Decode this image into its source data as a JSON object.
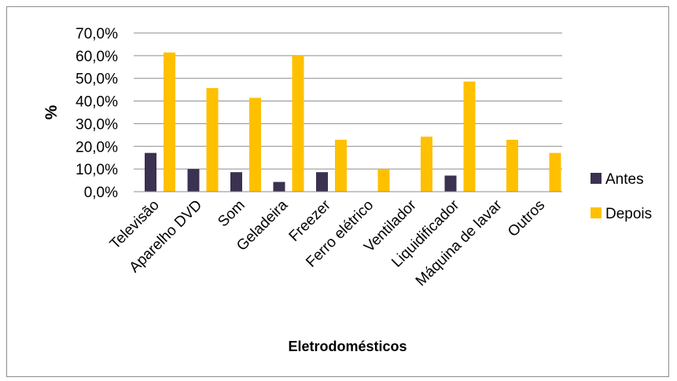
{
  "chart_data": {
    "type": "bar",
    "title": "",
    "xlabel": "Eletrodomésticos",
    "ylabel": "%",
    "ylim": [
      0,
      70
    ],
    "ytick_values": [
      0,
      10,
      20,
      30,
      40,
      50,
      60,
      70
    ],
    "ytick_labels": [
      "0,0%",
      "10,0%",
      "20,0%",
      "30,0%",
      "40,0%",
      "50,0%",
      "60,0%",
      "70,0%"
    ],
    "grid": true,
    "legend_position": "right",
    "categories": [
      "Televisão",
      "Aparelho DVD",
      "Som",
      "Geladeira",
      "Freezer",
      "Ferro elétrico",
      "Ventilador",
      "Liquidificador",
      "Máquina de lavar",
      "Outros"
    ],
    "series": [
      {
        "name": "Antes",
        "color": "#3b3151",
        "values": [
          17.1,
          10.0,
          8.6,
          4.3,
          8.6,
          0,
          0,
          7.1,
          0,
          0
        ]
      },
      {
        "name": "Depois",
        "color": "#ffc000",
        "values": [
          61.4,
          45.7,
          41.4,
          60.0,
          22.9,
          10.0,
          24.3,
          48.6,
          22.9,
          17.1
        ]
      }
    ]
  }
}
